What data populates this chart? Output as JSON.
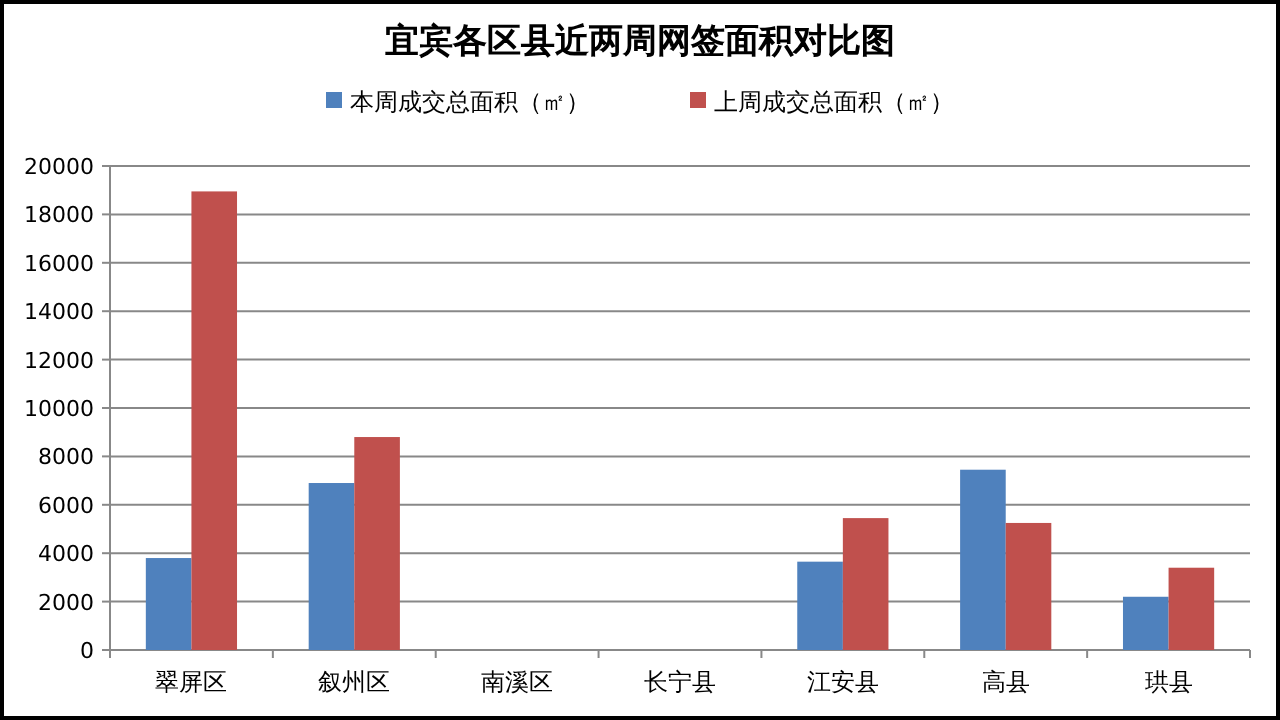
{
  "chart_data": {
    "type": "bar",
    "title": "宜宾各区县近两周网签面积对比图",
    "categories": [
      "翠屏区",
      "叙州区",
      "南溪区",
      "长宁县",
      "江安县",
      "高县",
      "珙县"
    ],
    "series": [
      {
        "name": "本周成交总面积（㎡）",
        "color": "#4f81bd",
        "values": [
          3800,
          6900,
          null,
          null,
          3650,
          7450,
          2200
        ]
      },
      {
        "name": "上周成交总面积（㎡）",
        "color": "#c0504d",
        "values": [
          18950,
          8800,
          null,
          null,
          5450,
          5250,
          3400
        ]
      }
    ],
    "ylim": [
      0,
      20000
    ],
    "yticks": [
      0,
      2000,
      4000,
      6000,
      8000,
      10000,
      12000,
      14000,
      16000,
      18000,
      20000
    ],
    "grid": "y",
    "legend": "top"
  }
}
